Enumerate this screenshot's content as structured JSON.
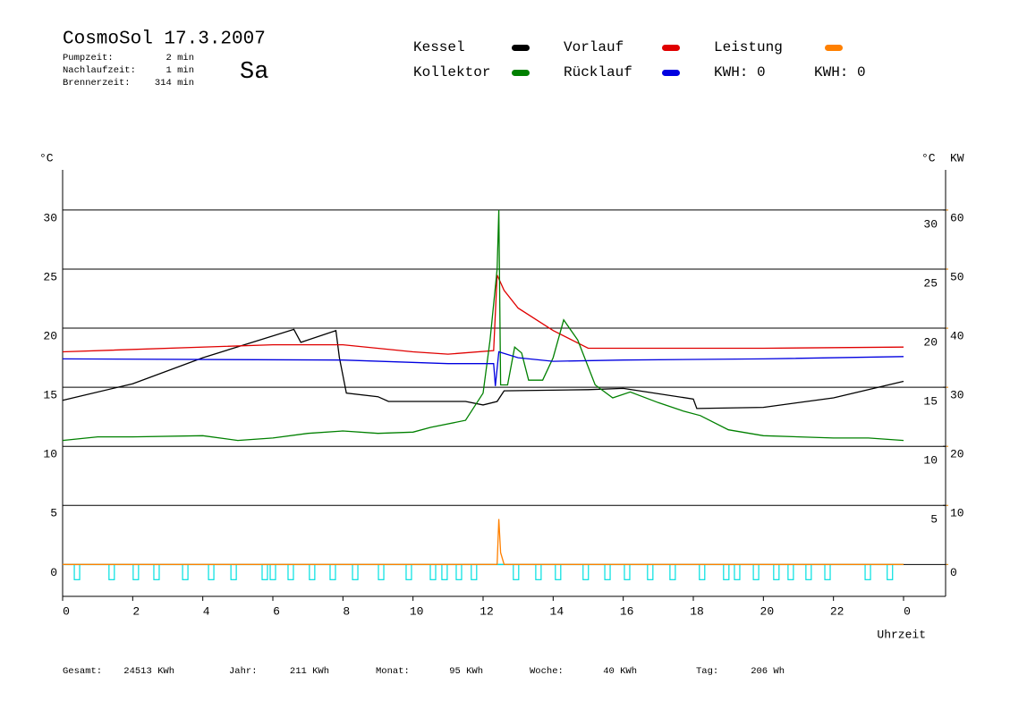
{
  "chart_data": {
    "type": "line",
    "title": "CosmoSol 17.3.2007",
    "day": "Sa",
    "day_color": "#e00000",
    "info": [
      {
        "label": "Pumpzeit:",
        "value": "2 min"
      },
      {
        "label": "Nachlaufzeit:",
        "value": "1 min"
      },
      {
        "label": "Brennerzeit:",
        "value": "314 min"
      }
    ],
    "y_label": "°C",
    "y_right_label": "°C",
    "y2_label": "KW",
    "y2_color": "#e08000",
    "x_label": "Uhrzeit",
    "grid": true,
    "xlim": [
      0,
      25.2
    ],
    "ylim": [
      -2.7,
      33.4
    ],
    "y2lim": [
      -5.4,
      66.8
    ],
    "xticks": [
      0,
      2,
      4,
      6,
      8,
      10,
      12,
      14,
      16,
      18,
      20,
      22,
      {
        "value": 24,
        "label": "0"
      }
    ],
    "yticks": [
      0,
      5,
      10,
      15,
      20,
      25,
      30
    ],
    "yticks_right": [
      5,
      10,
      15,
      20,
      25,
      30
    ],
    "y2ticks": [
      0,
      10,
      20,
      30,
      40,
      50,
      60
    ],
    "series": [
      {
        "name": "Kessel",
        "color": "#000000",
        "x": [
          0,
          2,
          4,
          6.6,
          6.8,
          7.8,
          7.9,
          8.1,
          9,
          9.3,
          11.5,
          12,
          12.4,
          12.6,
          15,
          16,
          18,
          18.1,
          20,
          22,
          23,
          24
        ],
        "values": [
          13.9,
          15.3,
          17.5,
          19.9,
          18.8,
          19.8,
          17.5,
          14.5,
          14.2,
          13.8,
          13.8,
          13.5,
          13.8,
          14.7,
          14.8,
          14.9,
          14.0,
          13.2,
          13.3,
          14.1,
          14.8,
          15.5
        ]
      },
      {
        "name": "Vorlauf",
        "color": "#e00000",
        "x": [
          0,
          6,
          8,
          10,
          11,
          12.3,
          12.4,
          12.6,
          13,
          14,
          15,
          16,
          20,
          24
        ],
        "values": [
          18.0,
          18.6,
          18.6,
          18.0,
          17.8,
          18.1,
          24.5,
          23.2,
          21.7,
          19.8,
          18.3,
          18.3,
          18.3,
          18.4
        ]
      },
      {
        "name": "Leistung",
        "color": "#ff8000",
        "axis": "y2",
        "x": [
          0,
          12.4,
          12.45,
          12.5,
          12.6,
          24
        ],
        "values": [
          0,
          0,
          7.7,
          2,
          0,
          0
        ]
      },
      {
        "name": "Kollektor",
        "color": "#008000",
        "x": [
          0,
          1,
          2,
          4,
          5,
          6,
          7,
          8,
          9,
          10,
          10.5,
          11.5,
          12,
          12.2,
          12.4,
          12.45,
          12.5,
          12.7,
          12.9,
          13.1,
          13.3,
          13.7,
          14,
          14.3,
          14.7,
          15.2,
          15.7,
          16.2,
          17,
          17.7,
          18.2,
          19,
          20,
          22,
          23,
          24
        ],
        "values": [
          10.5,
          10.8,
          10.8,
          10.9,
          10.5,
          10.7,
          11.1,
          11.3,
          11.1,
          11.2,
          11.6,
          12.2,
          14.5,
          19.0,
          25.0,
          30.0,
          15.2,
          15.2,
          18.4,
          17.9,
          15.6,
          15.6,
          17.5,
          20.7,
          19.0,
          15.2,
          14.1,
          14.6,
          13.7,
          13.0,
          12.6,
          11.4,
          10.9,
          10.7,
          10.7,
          10.5
        ]
      },
      {
        "name": "Rücklauf",
        "color": "#0000e0",
        "x": [
          0,
          8,
          11,
          12.3,
          12.35,
          12.45,
          13,
          14,
          16,
          20,
          24
        ],
        "values": [
          17.4,
          17.3,
          17.0,
          17.0,
          15.1,
          18.0,
          17.5,
          17.2,
          17.3,
          17.4,
          17.6
        ]
      }
    ],
    "kwh": [
      {
        "label": "KWH: 0",
        "color": "#e08000"
      },
      {
        "label": "KWH: 0",
        "color": "#800080"
      }
    ],
    "pulses": {
      "color": "#00e0e0",
      "x": [
        0.41,
        1.4,
        2.09,
        2.68,
        3.5,
        4.24,
        4.88,
        5.77,
        6.0,
        6.51,
        7.12,
        7.71,
        8.35,
        9.09,
        9.88,
        10.57,
        10.9,
        11.31,
        11.74,
        12.94,
        13.58,
        14.14,
        14.93,
        15.55,
        16.11,
        16.77,
        17.41,
        18.25,
        18.94,
        19.25,
        19.79,
        20.37,
        20.78,
        21.29,
        21.83,
        22.98,
        23.61
      ]
    },
    "footer": [
      {
        "label": "Gesamt:",
        "value": "24513 KWh"
      },
      {
        "label": "Jahr:",
        "value": "211 KWh"
      },
      {
        "label": "Monat:",
        "value": "95 KWh"
      },
      {
        "label": "Woche:",
        "value": "40 KWh"
      },
      {
        "label": "Tag:",
        "value": "206 Wh"
      }
    ]
  }
}
